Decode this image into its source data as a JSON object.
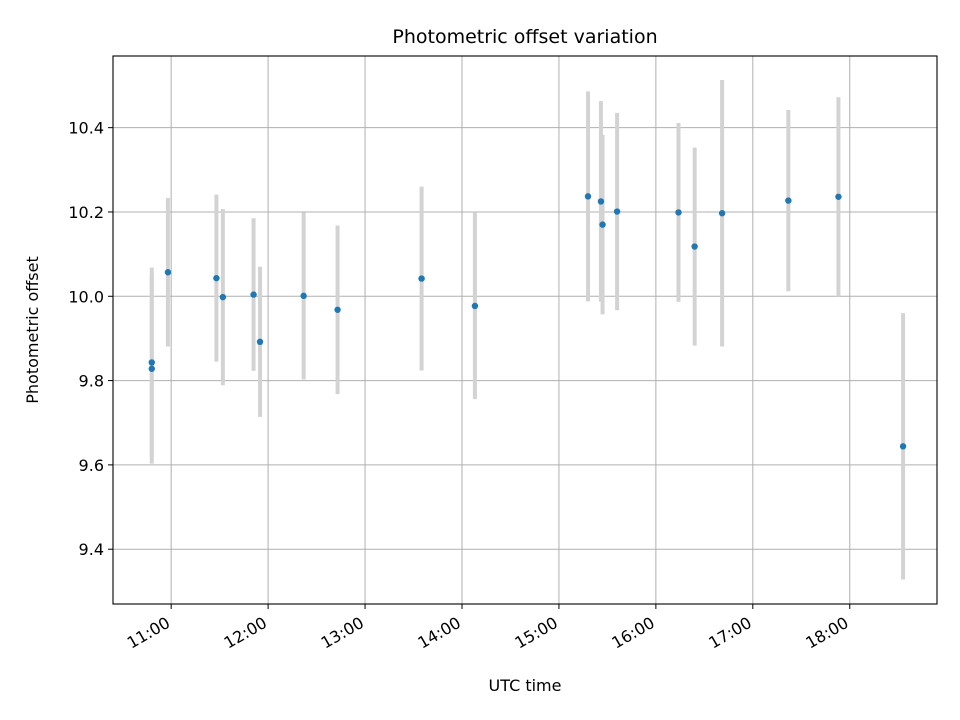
{
  "chart_data": {
    "type": "scatter",
    "title": "Photometric offset variation",
    "xlabel": "UTC time",
    "ylabel": "Photometric offset",
    "x_ticks": [
      "11:00",
      "12:00",
      "13:00",
      "14:00",
      "15:00",
      "16:00",
      "17:00",
      "18:00"
    ],
    "y_ticks": [
      "9.4",
      "9.6",
      "9.8",
      "10.0",
      "10.2",
      "10.4"
    ],
    "xlim": [
      "10:24",
      "18:54"
    ],
    "ylim": [
      9.27,
      10.57
    ],
    "grid": true,
    "colors": {
      "point": "#1f77b4",
      "errorbar": "#d3d3d3",
      "grid": "#b0b0b0"
    },
    "points": [
      {
        "x": "10:48",
        "y": 9.843,
        "err": 0.225
      },
      {
        "x": "10:48",
        "y": 9.828,
        "err": 0.225
      },
      {
        "x": "10:58",
        "y": 10.057,
        "err": 0.176
      },
      {
        "x": "11:28",
        "y": 10.043,
        "err": 0.198
      },
      {
        "x": "11:32",
        "y": 9.998,
        "err": 0.209
      },
      {
        "x": "11:51",
        "y": 10.004,
        "err": 0.181
      },
      {
        "x": "11:55",
        "y": 9.892,
        "err": 0.178
      },
      {
        "x": "12:22",
        "y": 10.001,
        "err": 0.198
      },
      {
        "x": "12:43",
        "y": 9.968,
        "err": 0.2
      },
      {
        "x": "13:35",
        "y": 10.042,
        "err": 0.218
      },
      {
        "x": "14:08",
        "y": 9.977,
        "err": 0.221
      },
      {
        "x": "15:18",
        "y": 10.237,
        "err": 0.249
      },
      {
        "x": "15:26",
        "y": 10.225,
        "err": 0.238
      },
      {
        "x": "15:27",
        "y": 10.17,
        "err": 0.213
      },
      {
        "x": "15:36",
        "y": 10.201,
        "err": 0.234
      },
      {
        "x": "16:14",
        "y": 10.199,
        "err": 0.212
      },
      {
        "x": "16:24",
        "y": 10.118,
        "err": 0.235
      },
      {
        "x": "16:41",
        "y": 10.197,
        "err": 0.316
      },
      {
        "x": "17:22",
        "y": 10.227,
        "err": 0.215
      },
      {
        "x": "17:53",
        "y": 10.236,
        "err": 0.236
      },
      {
        "x": "18:33",
        "y": 9.644,
        "err": 0.316
      }
    ]
  }
}
